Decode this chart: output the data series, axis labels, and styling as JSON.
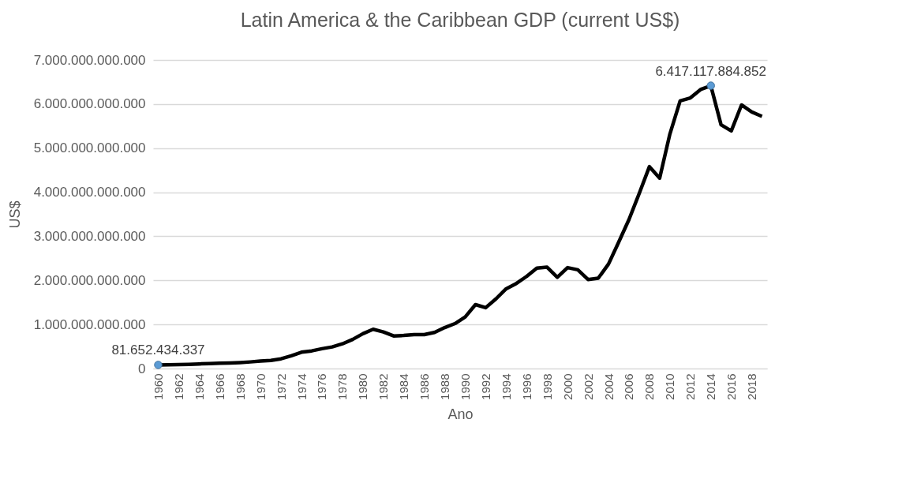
{
  "chart_data": {
    "type": "line",
    "title": "Latin America & the Caribbean GDP (current US$)",
    "xlabel": "Ano",
    "ylabel": "US$",
    "categories": [
      "1960",
      null,
      "1962",
      null,
      "1964",
      null,
      "1966",
      null,
      "1968",
      null,
      "1970",
      null,
      "1972",
      null,
      "1974",
      null,
      "1976",
      null,
      "1978",
      null,
      "1980",
      null,
      "1982",
      null,
      "1984",
      null,
      "1986",
      null,
      "1988",
      null,
      "1990",
      null,
      "1992",
      null,
      "1994",
      null,
      "1996",
      null,
      "1998",
      null,
      "2000",
      null,
      "2002",
      null,
      "2004",
      null,
      "2006",
      null,
      "2008",
      null,
      "2010",
      null,
      "2012",
      null,
      "2014",
      null,
      "2016",
      null,
      "2018",
      null
    ],
    "series": [
      {
        "color": "#000000",
        "values": [
          81652434337,
          85000000000,
          90000000000,
          95000000000,
          105000000000,
          110000000000,
          120000000000,
          125000000000,
          135000000000,
          150000000000,
          170000000000,
          185000000000,
          220000000000,
          290000000000,
          370000000000,
          400000000000,
          450000000000,
          490000000000,
          560000000000,
          660000000000,
          790000000000,
          890000000000,
          830000000000,
          740000000000,
          750000000000,
          770000000000,
          770000000000,
          820000000000,
          930000000000,
          1020000000000,
          1170000000000,
          1450000000000,
          1380000000000,
          1580000000000,
          1810000000000,
          1930000000000,
          2090000000000,
          2280000000000,
          2300000000000,
          2070000000000,
          2290000000000,
          2240000000000,
          2020000000000,
          2050000000000,
          2370000000000,
          2870000000000,
          3380000000000,
          3970000000000,
          4580000000000,
          4320000000000,
          5320000000000,
          6070000000000,
          6140000000000,
          6330000000000,
          6417117884852,
          5530000000000,
          5390000000000,
          5980000000000,
          5820000000000,
          5720000000000
        ],
        "value_labels": [
          "81.652.434.337",
          null,
          null,
          null,
          null,
          null,
          null,
          null,
          null,
          null,
          null,
          null,
          null,
          null,
          null,
          null,
          null,
          null,
          null,
          null,
          null,
          null,
          null,
          null,
          null,
          null,
          null,
          null,
          null,
          null,
          null,
          null,
          null,
          null,
          null,
          null,
          null,
          null,
          null,
          null,
          null,
          null,
          null,
          null,
          null,
          null,
          null,
          null,
          null,
          null,
          null,
          null,
          null,
          null,
          "6.417.117.884.852",
          null,
          null,
          null,
          null,
          null
        ]
      }
    ],
    "ylim": [
      0,
      7000000000000
    ],
    "yticks": [
      {
        "value": 0,
        "label": "0"
      },
      {
        "value": 1000000000000,
        "label": "1.000.000.000.000"
      },
      {
        "value": 2000000000000,
        "label": "2.000.000.000.000"
      },
      {
        "value": 3000000000000,
        "label": "3.000.000.000.000"
      },
      {
        "value": 4000000000000,
        "label": "4.000.000.000.000"
      },
      {
        "value": 5000000000000,
        "label": "5.000.000.000.000"
      },
      {
        "value": 6000000000000,
        "label": "6.000.000.000.000"
      },
      {
        "value": 7000000000000,
        "label": "7.000.000.000.000"
      }
    ],
    "grid": "y",
    "line_style": "solid"
  }
}
